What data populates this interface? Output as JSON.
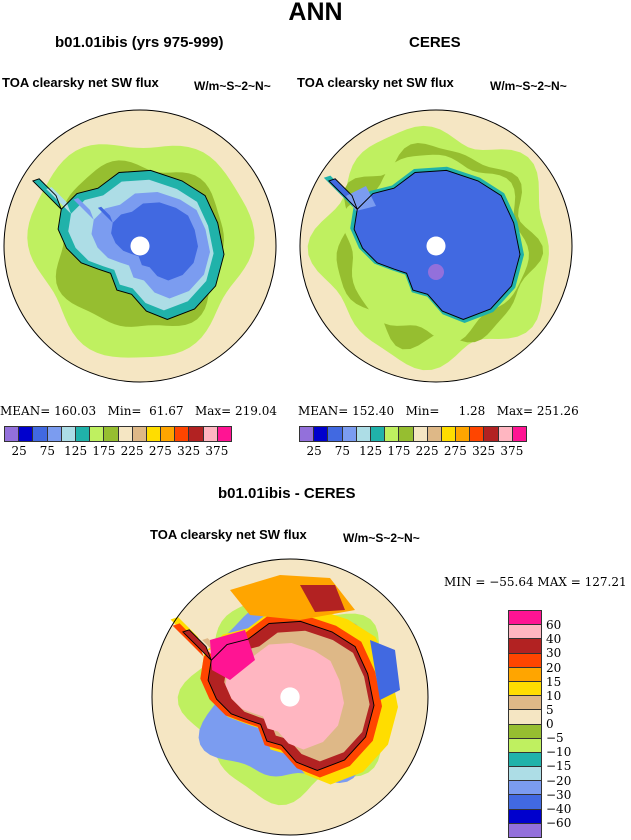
{
  "title": "ANN",
  "panels": [
    {
      "subtitle": "b01.01ibis (yrs 975-999)",
      "variable": "TOA clearsky net SW flux",
      "units": "W/m~S~2~N~",
      "stats": {
        "mean_label": "MEAN=",
        "mean": "160.03",
        "min_label": "Min=",
        "min": "61.67",
        "max_label": "Max=",
        "max": "219.04"
      }
    },
    {
      "subtitle": "CERES",
      "variable": "TOA clearsky net SW flux",
      "units": "W/m~S~2~N~",
      "stats": {
        "mean_label": "MEAN=",
        "mean": "152.40",
        "min_label": "Min=",
        "min": "1.28",
        "max_label": "Max=",
        "max": "251.26"
      }
    },
    {
      "subtitle": "b01.01ibis - CERES",
      "variable": "TOA clearsky net SW flux",
      "units": "W/m~S~2~N~",
      "stats": {
        "text": "MIN = −55.64  MAX = 127.21"
      }
    }
  ],
  "colorbar_abs": {
    "colors": [
      "#9370DB",
      "#0000CD",
      "#4169E1",
      "#7B9CF0",
      "#ADDDE6",
      "#20B2AA",
      "#BFF060",
      "#96BE30",
      "#F5E6C3",
      "#DEB887",
      "#FFDD00",
      "#FFA500",
      "#FF4500",
      "#B22222",
      "#FFB6C1",
      "#FF1493"
    ],
    "labels": [
      "25",
      "75",
      "125",
      "175",
      "225",
      "275",
      "325",
      "375"
    ]
  },
  "colorbar_diff": {
    "colors": [
      "#FF1493",
      "#FFB6C1",
      "#B22222",
      "#FF4500",
      "#FFA500",
      "#FFDD00",
      "#DEB887",
      "#F5E6C3",
      "#96BE30",
      "#BFF060",
      "#20B2AA",
      "#ADDDE6",
      "#7B9CF0",
      "#4169E1",
      "#0000CD",
      "#9370DB"
    ],
    "labels": [
      "60",
      "40",
      "30",
      "20",
      "15",
      "10",
      "5",
      "0",
      "−5",
      "−10",
      "−15",
      "−20",
      "−30",
      "−40",
      "−60"
    ]
  }
}
